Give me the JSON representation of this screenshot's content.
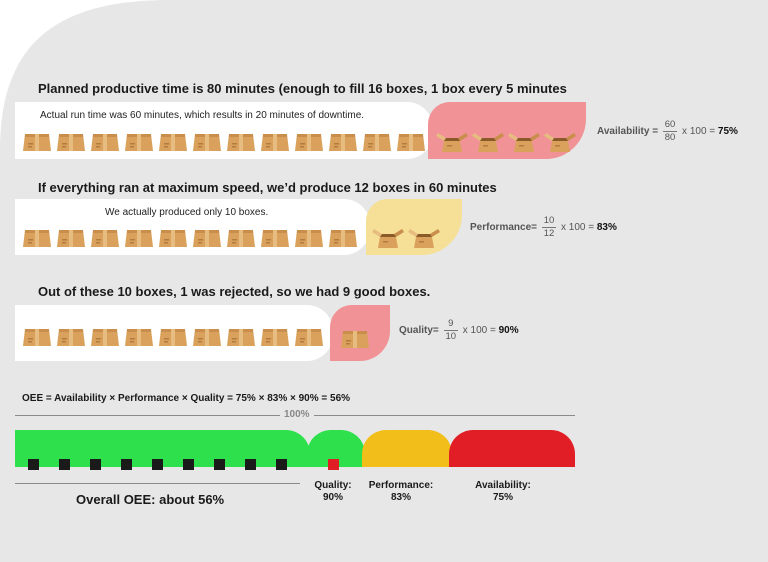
{
  "sections": {
    "availability": {
      "heading": "Planned productive time is 80 minutes (enough to fill 16 boxes, 1 box every 5 minutes",
      "note": "Actual run time was 60 minutes, which results in 20 minutes of downtime.",
      "boxes_main": 12,
      "boxes_highlight": 4,
      "highlight_color": "#f19396",
      "formula": {
        "label": "Availability =",
        "numerator": "60",
        "denominator": "80",
        "rest": "x 100 =",
        "result": "75%"
      }
    },
    "performance": {
      "heading": "If everything ran at maximum speed, we’d produce 12 boxes in 60 minutes",
      "note": "We actually produced only 10 boxes.",
      "boxes_main": 10,
      "boxes_highlight": 2,
      "highlight_color": "#f6e097",
      "formula": {
        "label": "Performance=",
        "numerator": "10",
        "denominator": "12",
        "rest": "x 100 =",
        "result": "83%"
      }
    },
    "quality": {
      "heading": "Out of these 10 boxes, 1 was rejected, so we had 9 good boxes.",
      "boxes_main": 9,
      "boxes_highlight": 1,
      "highlight_color": "#f19396",
      "formula": {
        "label": "Quality=",
        "numerator": "9",
        "denominator": "10",
        "rest": "x 100 =",
        "result": "90%"
      }
    }
  },
  "oee": {
    "equation": "OEE = Availability × Performance × Quality = 75% × 83% × 90% = 56%",
    "full_label": "100%",
    "overall_label": "Overall OEE: about 56%",
    "good_count": 9,
    "reject_count": 1,
    "colors": {
      "green": "#2ee04c",
      "yellow": "#f2be1a",
      "red": "#e11e26",
      "square": "#1a1a1a",
      "reject_square": "#e11e26"
    },
    "labels": {
      "quality": {
        "name": "Quality:",
        "value": "90%"
      },
      "performance": {
        "name": "Performance:",
        "value": "83%"
      },
      "availability": {
        "name": "Availability:",
        "value": "75%"
      }
    }
  },
  "colors": {
    "background": "#e7e7e7",
    "box": "#d9a15c"
  }
}
